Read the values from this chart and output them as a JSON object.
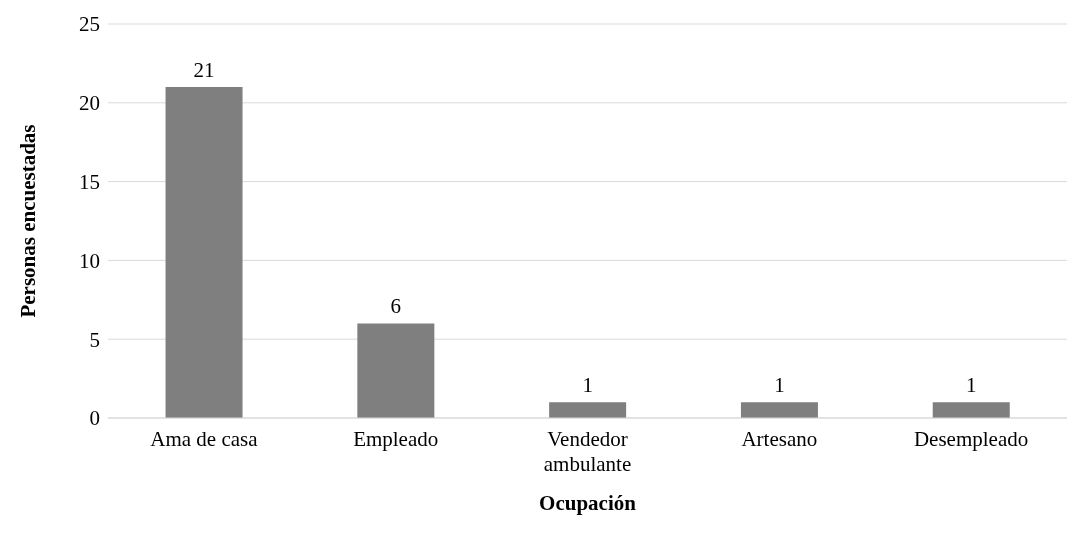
{
  "chart_data": {
    "type": "bar",
    "xlabel": "Ocupación",
    "ylabel": "Personas encuestadas",
    "categories": [
      "Ama de casa",
      "Empleado",
      "Vendedor ambulante",
      "Artesano",
      "Desempleado"
    ],
    "values": [
      21,
      6,
      1,
      1,
      1
    ],
    "color": "#7f7f7f",
    "ylim": [
      0,
      25
    ],
    "yticks": [
      0,
      5,
      10,
      15,
      20,
      25
    ],
    "grid": "y",
    "data_labels": true
  }
}
